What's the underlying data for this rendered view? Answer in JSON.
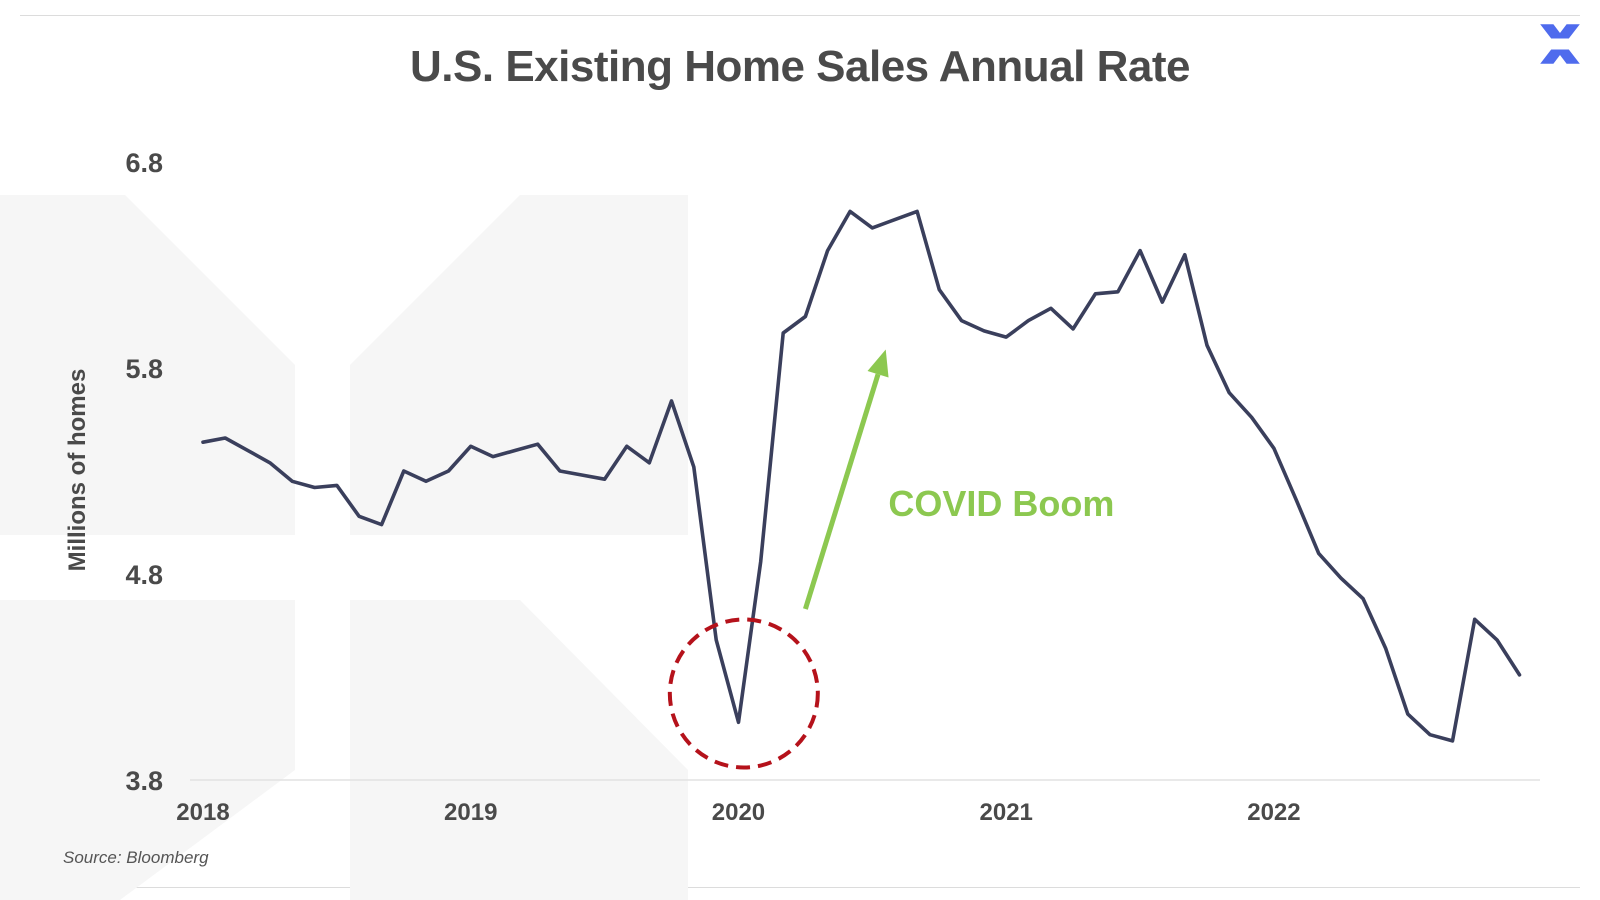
{
  "title": "U.S. Existing Home Sales Annual Rate",
  "source": "Source: Bloomberg",
  "logo_icon": "x-logo-icon",
  "colors": {
    "line": "#3a3f5c",
    "arrow": "#8cc850",
    "annotation_text": "#8cc850",
    "circle": "#b5121b",
    "title": "#4a4a4a",
    "watermark": "#f6f6f6",
    "logo": "#4f6bed"
  },
  "chart_data": {
    "type": "line",
    "title": "U.S. Existing Home Sales Annual Rate",
    "ylabel": "Millions of homes",
    "xlabel": "",
    "ylim": [
      3.8,
      6.8
    ],
    "xlim": [
      2018.0,
      2022.99
    ],
    "yticks": [
      6.8,
      5.8,
      4.8,
      3.8
    ],
    "ytick_labels": [
      "6.8",
      "5.8",
      "4.8",
      "3.8"
    ],
    "xticks": [
      2018,
      2019,
      2020,
      2021,
      2022
    ],
    "xtick_labels": [
      "2018",
      "2019",
      "2020",
      "2021",
      "2022"
    ],
    "grid": false,
    "series": [
      {
        "x": [
          2018.0,
          2018.083,
          2018.167,
          2018.25,
          2018.333,
          2018.417,
          2018.5,
          2018.583,
          2018.667,
          2018.75,
          2018.833,
          2018.917,
          2019.0,
          2019.083,
          2019.167,
          2019.25,
          2019.333,
          2019.417,
          2019.5,
          2019.583,
          2019.667,
          2019.75,
          2019.833,
          2019.917,
          2020.0,
          2020.083,
          2020.167,
          2020.25,
          2020.333,
          2020.417,
          2020.5,
          2020.583,
          2020.667,
          2020.75,
          2020.833,
          2020.917,
          2021.0,
          2021.083,
          2021.167,
          2021.25,
          2021.333,
          2021.417,
          2021.5,
          2021.583,
          2021.667,
          2021.75,
          2021.833,
          2021.917,
          2022.0,
          2022.083,
          2022.167,
          2022.25,
          2022.333,
          2022.417,
          2022.5,
          2022.583,
          2022.667,
          2022.75,
          2022.833,
          2022.917
        ],
        "y": [
          5.44,
          5.46,
          5.4,
          5.34,
          5.25,
          5.22,
          5.23,
          5.08,
          5.04,
          5.3,
          5.25,
          5.3,
          5.42,
          5.37,
          5.4,
          5.43,
          5.3,
          5.28,
          5.26,
          5.42,
          5.34,
          5.64,
          5.32,
          4.48,
          4.08,
          4.86,
          5.97,
          6.05,
          6.37,
          6.56,
          6.48,
          6.52,
          6.56,
          6.18,
          6.03,
          5.98,
          5.95,
          6.03,
          6.09,
          5.99,
          6.16,
          6.17,
          6.37,
          6.12,
          6.35,
          5.91,
          5.68,
          5.56,
          5.41,
          5.16,
          4.9,
          4.78,
          4.68,
          4.44,
          4.12,
          4.02,
          3.99,
          4.58,
          4.48,
          4.31
        ]
      }
    ],
    "annotations": [
      {
        "text": "COVID Boom",
        "type": "arrow",
        "x_start": 2020.25,
        "y_start": 4.63,
        "x_end": 2020.55,
        "y_end": 5.89,
        "text_x": 2020.56,
        "text_y": 5.14
      },
      {
        "text": "",
        "type": "dashed-circle",
        "x": 2020.02,
        "y": 4.22
      }
    ]
  }
}
